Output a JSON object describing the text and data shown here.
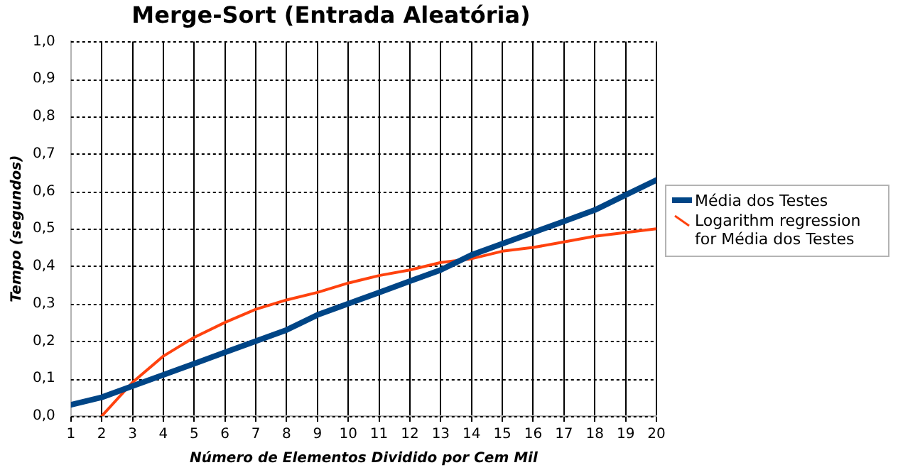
{
  "chart_data": {
    "type": "line",
    "title": "Merge-Sort (Entrada Aleatória)",
    "xlabel": "Número de Elementos Dividido por Cem Mil",
    "ylabel": "Tempo (segundos)",
    "x": [
      1,
      2,
      3,
      4,
      5,
      6,
      7,
      8,
      9,
      10,
      11,
      12,
      13,
      14,
      15,
      16,
      17,
      18,
      19,
      20
    ],
    "series": [
      {
        "name": "Média dos Testes",
        "color": "#004586",
        "values": [
          0.03,
          0.05,
          0.08,
          0.11,
          0.14,
          0.17,
          0.2,
          0.23,
          0.27,
          0.3,
          0.33,
          0.36,
          0.39,
          0.43,
          0.46,
          0.49,
          0.52,
          0.55,
          0.59,
          0.63
        ]
      },
      {
        "name": "Logarithm regression for Média dos Testes",
        "color": "#ff420e",
        "values": [
          null,
          0.0,
          0.09,
          0.16,
          0.21,
          0.25,
          0.285,
          0.31,
          0.33,
          0.355,
          0.375,
          0.39,
          0.41,
          0.42,
          0.44,
          0.45,
          0.465,
          0.48,
          0.49,
          0.5
        ]
      }
    ],
    "xlim": [
      1,
      20
    ],
    "xticks": [
      1,
      2,
      3,
      4,
      5,
      6,
      7,
      8,
      9,
      10,
      11,
      12,
      13,
      14,
      15,
      16,
      17,
      18,
      19,
      20
    ],
    "ylim": [
      0,
      1
    ],
    "yticks": [
      {
        "value": 0,
        "label": "0,0"
      },
      {
        "value": 0.1,
        "label": "0,1"
      },
      {
        "value": 0.2,
        "label": "0,2"
      },
      {
        "value": 0.3,
        "label": "0,3"
      },
      {
        "value": 0.4,
        "label": "0,4"
      },
      {
        "value": 0.5,
        "label": "0,5"
      },
      {
        "value": 0.6,
        "label": "0,6"
      },
      {
        "value": 0.7,
        "label": "0,7"
      },
      {
        "value": 0.8,
        "label": "0,8"
      },
      {
        "value": 0.9,
        "label": "0,9"
      },
      {
        "value": 1,
        "label": "1,0"
      }
    ],
    "grid": true,
    "legend": "right",
    "marker": "none"
  }
}
